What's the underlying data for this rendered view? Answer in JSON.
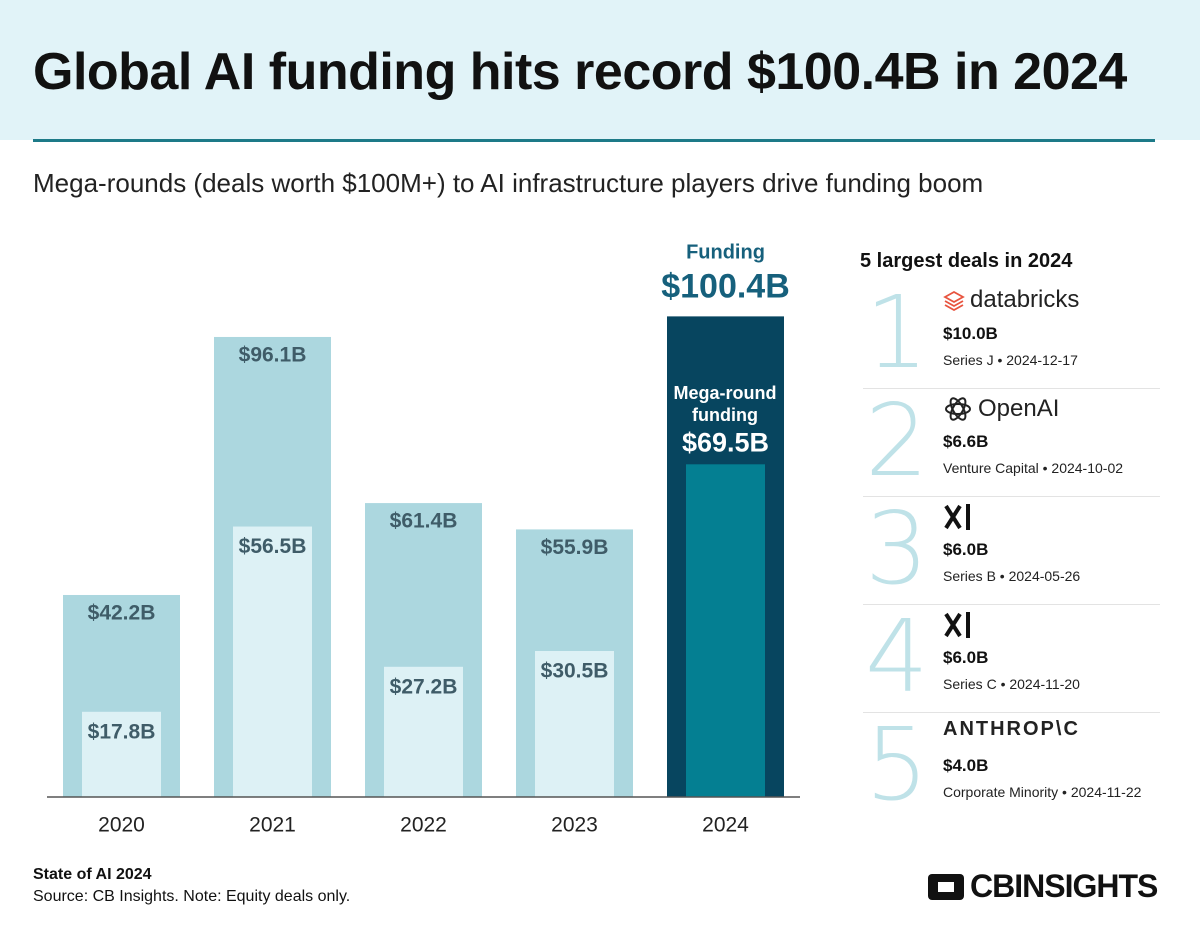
{
  "header": {
    "title": "Global AI funding hits record $100.4B in 2024",
    "subtitle": "Mega-rounds (deals worth $100M+) to AI infrastructure players drive funding boom"
  },
  "chart_data": {
    "type": "overlap-bar",
    "categories": [
      "2020",
      "2021",
      "2022",
      "2023",
      "2024"
    ],
    "highlight": 4,
    "series": [
      {
        "name": "Funding",
        "colors": [
          "#acd7df",
          "#acd7df",
          "#acd7df",
          "#acd7df",
          "#07455f"
        ],
        "values": [
          42.2,
          96.1,
          61.4,
          55.9,
          100.4
        ],
        "value_labels": [
          "$42.2B",
          "$96.1B",
          "$61.4B",
          "$55.9B",
          "$100.4B"
        ]
      },
      {
        "name": "Mega-round funding",
        "colors": [
          "#ddf1f5",
          "#ddf1f5",
          "#ddf1f5",
          "#ddf1f5",
          "#047f92"
        ],
        "values": [
          17.8,
          56.5,
          27.2,
          30.5,
          69.5
        ],
        "value_labels": [
          "$17.8B",
          "$56.5B",
          "$27.2B",
          "$30.5B",
          "$69.5B"
        ]
      }
    ]
  },
  "deals": {
    "title": "5 largest deals in 2024",
    "items": [
      {
        "rank": "1",
        "company": "databricks",
        "amount": "$10.0B",
        "detail": "Series J • 2024-12-17"
      },
      {
        "rank": "2",
        "company": "OpenAI",
        "amount": "$6.6B",
        "detail": "Venture Capital • 2024-10-02"
      },
      {
        "rank": "3",
        "amount": "$6.0B",
        "detail": "Series B • 2024-05-26"
      },
      {
        "rank": "4",
        "amount": "$6.0B",
        "detail": "Series C • 2024-11-20"
      },
      {
        "rank": "5",
        "company": "ANTHROP\\C",
        "amount": "$4.0B",
        "detail": "Corporate Minority • 2024-11-22"
      }
    ]
  },
  "footer": {
    "report": "State of AI 2024",
    "source": "Source: CB Insights. Note: Equity deals only.",
    "brand": "CBINSIGHTS"
  }
}
